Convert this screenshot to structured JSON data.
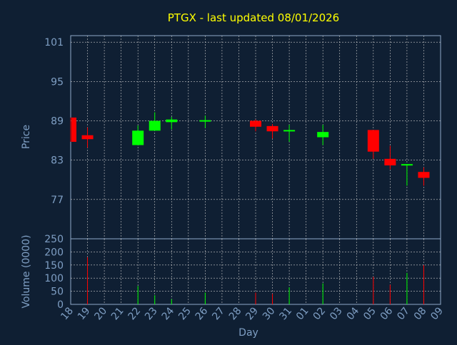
{
  "chart_data": {
    "type": "candlestick",
    "title": "PTGX - last updated 08/01/2026",
    "xlabel": "Day",
    "price_panel": {
      "ylabel": "Price",
      "yticks": [
        101,
        95,
        89,
        83,
        77
      ],
      "ylim": [
        71,
        102
      ],
      "grid": true
    },
    "volume_panel": {
      "ylabel": "Volume (0000)",
      "yticks": [
        250,
        200,
        150,
        100,
        50,
        0
      ],
      "ylim": [
        0,
        250
      ],
      "grid": true
    },
    "x_ticks": [
      "18",
      "19",
      "20",
      "21",
      "22",
      "23",
      "24",
      "25",
      "26",
      "27",
      "28",
      "29",
      "30",
      "31",
      "01",
      "02",
      "03",
      "04",
      "05",
      "06",
      "07",
      "08",
      "09"
    ],
    "candles": [
      {
        "day": "18",
        "open": 89.5,
        "high": 89.5,
        "low": 85.8,
        "close": 85.8,
        "volume": 0
      },
      {
        "day": "19",
        "open": 86.8,
        "high": 88.0,
        "low": 84.9,
        "close": 86.2,
        "volume": 180
      },
      {
        "day": "22",
        "open": 85.3,
        "high": 88.3,
        "low": 85.3,
        "close": 87.5,
        "volume": 70
      },
      {
        "day": "23",
        "open": 87.5,
        "high": 90.3,
        "low": 87.5,
        "close": 89.0,
        "volume": 35
      },
      {
        "day": "24",
        "open": 88.8,
        "high": 89.6,
        "low": 87.7,
        "close": 89.2,
        "volume": 20
      },
      {
        "day": "26",
        "open": 88.9,
        "high": 89.8,
        "low": 87.9,
        "close": 89.1,
        "volume": 45
      },
      {
        "day": "29",
        "open": 89.0,
        "high": 89.2,
        "low": 87.4,
        "close": 88.1,
        "volume": 45
      },
      {
        "day": "30",
        "open": 88.2,
        "high": 88.5,
        "low": 86.3,
        "close": 87.4,
        "volume": 40
      },
      {
        "day": "31",
        "open": 87.4,
        "high": 88.4,
        "low": 85.8,
        "close": 87.6,
        "volume": 65
      },
      {
        "day": "02",
        "open": 86.5,
        "high": 88.4,
        "low": 85.3,
        "close": 87.3,
        "volume": 80
      },
      {
        "day": "05",
        "open": 87.6,
        "high": 87.6,
        "low": 83.2,
        "close": 84.3,
        "volume": 105
      },
      {
        "day": "06",
        "open": 83.2,
        "high": 85.2,
        "low": 81.6,
        "close": 82.2,
        "volume": 75
      },
      {
        "day": "07",
        "open": 82.2,
        "high": 82.4,
        "low": 79.1,
        "close": 82.4,
        "volume": 120
      },
      {
        "day": "08",
        "open": 81.2,
        "high": 81.9,
        "low": 79.1,
        "close": 80.3,
        "volume": 150
      }
    ],
    "colors": {
      "up": "#00ff00",
      "down": "#ff0000",
      "background": "#0f1f33",
      "text": "#7f9fc4",
      "title": "#ffff00",
      "grid": "#c8c8c8",
      "frame": "#8fa9c9"
    }
  }
}
